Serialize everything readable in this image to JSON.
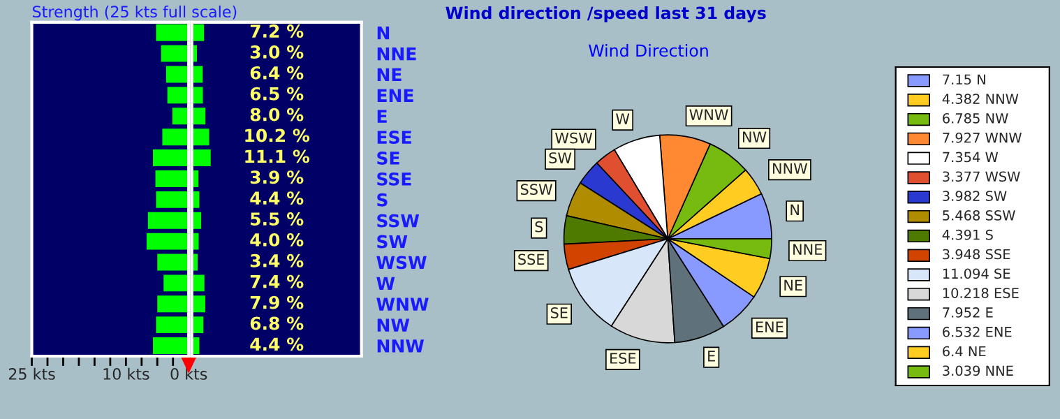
{
  "chart_data": [
    {
      "type": "bar",
      "orientation": "horizontal",
      "title": "Strength (25 kts full scale)",
      "categories": [
        null,
        null,
        null,
        null,
        null,
        null,
        null,
        null,
        null,
        null,
        null,
        null,
        null,
        null,
        null,
        null
      ],
      "series": [
        {
          "color": "#00ff00",
          "values": [
            5.2,
            4.4,
            3.6,
            3.4,
            2.6,
            4.2,
            5.7,
            5.3,
            5.2,
            6.5,
            6.7,
            5.0,
            4.0,
            5.0,
            5.2,
            5.7
          ]
        }
      ],
      "xlim": [
        25,
        0
      ],
      "xticks": [
        {
          "value": 25,
          "label": "25 kts"
        },
        {
          "value": 22.5,
          "label": null
        },
        {
          "value": 20,
          "label": null
        },
        {
          "value": 17.5,
          "label": null
        },
        {
          "value": 15,
          "label": null
        },
        {
          "value": 12.5,
          "label": null
        },
        {
          "value": 10,
          "label": "10 kts"
        },
        {
          "value": 7.5,
          "label": null
        },
        {
          "value": 5,
          "label": null
        },
        {
          "value": 2.5,
          "label": null
        },
        {
          "value": 0,
          "label": "0 kts"
        }
      ],
      "tick_labels": "x"
    },
    {
      "type": "bar",
      "orientation": "horizontal",
      "categories": [
        "N",
        "NNE",
        "NE",
        "ENE",
        "E",
        "ESE",
        "SE",
        "SSE",
        "S",
        "SSW",
        "SW",
        "WSW",
        "W",
        "WNW",
        "NW",
        "NNW"
      ],
      "series": [
        {
          "color": "#00ff00",
          "values": [
            7.2,
            3.0,
            6.4,
            6.5,
            8.0,
            10.2,
            11.1,
            3.9,
            4.4,
            5.5,
            4.0,
            3.4,
            7.4,
            7.9,
            6.8,
            4.4
          ],
          "value_labels": [
            "7.2 %",
            "3.0 %",
            "6.4 %",
            "6.5 %",
            "8.0 %",
            "10.2 %",
            "11.1 %",
            "3.9 %",
            "4.4 %",
            "5.5 %",
            "4.0 %",
            "3.4 %",
            "7.4 %",
            "7.9 %",
            "6.8 %",
            "4.4 %"
          ]
        }
      ],
      "xlim": [
        0,
        100
      ],
      "tick_labels": "y"
    },
    {
      "type": "pie",
      "title": "Wind direction /speed last 31 days",
      "subtitle": "Wind Direction",
      "categories": [
        "N",
        "NNW",
        "NW",
        "WNW",
        "W",
        "WSW",
        "SW",
        "SSW",
        "S",
        "SSE",
        "SE",
        "ESE",
        "E",
        "ENE",
        "NE",
        "NNE"
      ],
      "values": [
        7.15,
        4.382,
        6.785,
        7.927,
        7.354,
        3.377,
        3.982,
        5.468,
        4.391,
        3.948,
        11.094,
        10.218,
        7.952,
        6.532,
        6.4,
        3.039
      ],
      "colors": [
        "#8899ff",
        "#ffcc22",
        "#77bb11",
        "#ff8833",
        "#ffffff",
        "#e05030",
        "#2a3ad0",
        "#b08c00",
        "#4f7a00",
        "#d04400",
        "#d8e6fa",
        "#d8d8d8",
        "#5f717a",
        "#8899ff",
        "#ffcc22",
        "#77bb11"
      ],
      "legend": false
    },
    {
      "type": "other",
      "annotations": [
        "7.15 N",
        "4.382 NNW",
        "6.785 NW",
        "7.927 WNW",
        "7.354 W",
        "3.377 WSW",
        "3.982 SW",
        "5.468 SSW",
        "4.391 S",
        "3.948 SSE",
        "11.094 SE",
        "10.218 ESE",
        "7.952 E",
        "6.532 ENE",
        "6.4 NE",
        "3.039 NNE"
      ],
      "colors": [
        "#8899ff",
        "#ffcc22",
        "#77bb11",
        "#ff8833",
        "#ffffff",
        "#e05030",
        "#2a3ad0",
        "#b08c00",
        "#4f7a00",
        "#d04400",
        "#d8e6fa",
        "#d8d8d8",
        "#5f717a",
        "#8899ff",
        "#ffcc22",
        "#77bb11"
      ]
    }
  ]
}
